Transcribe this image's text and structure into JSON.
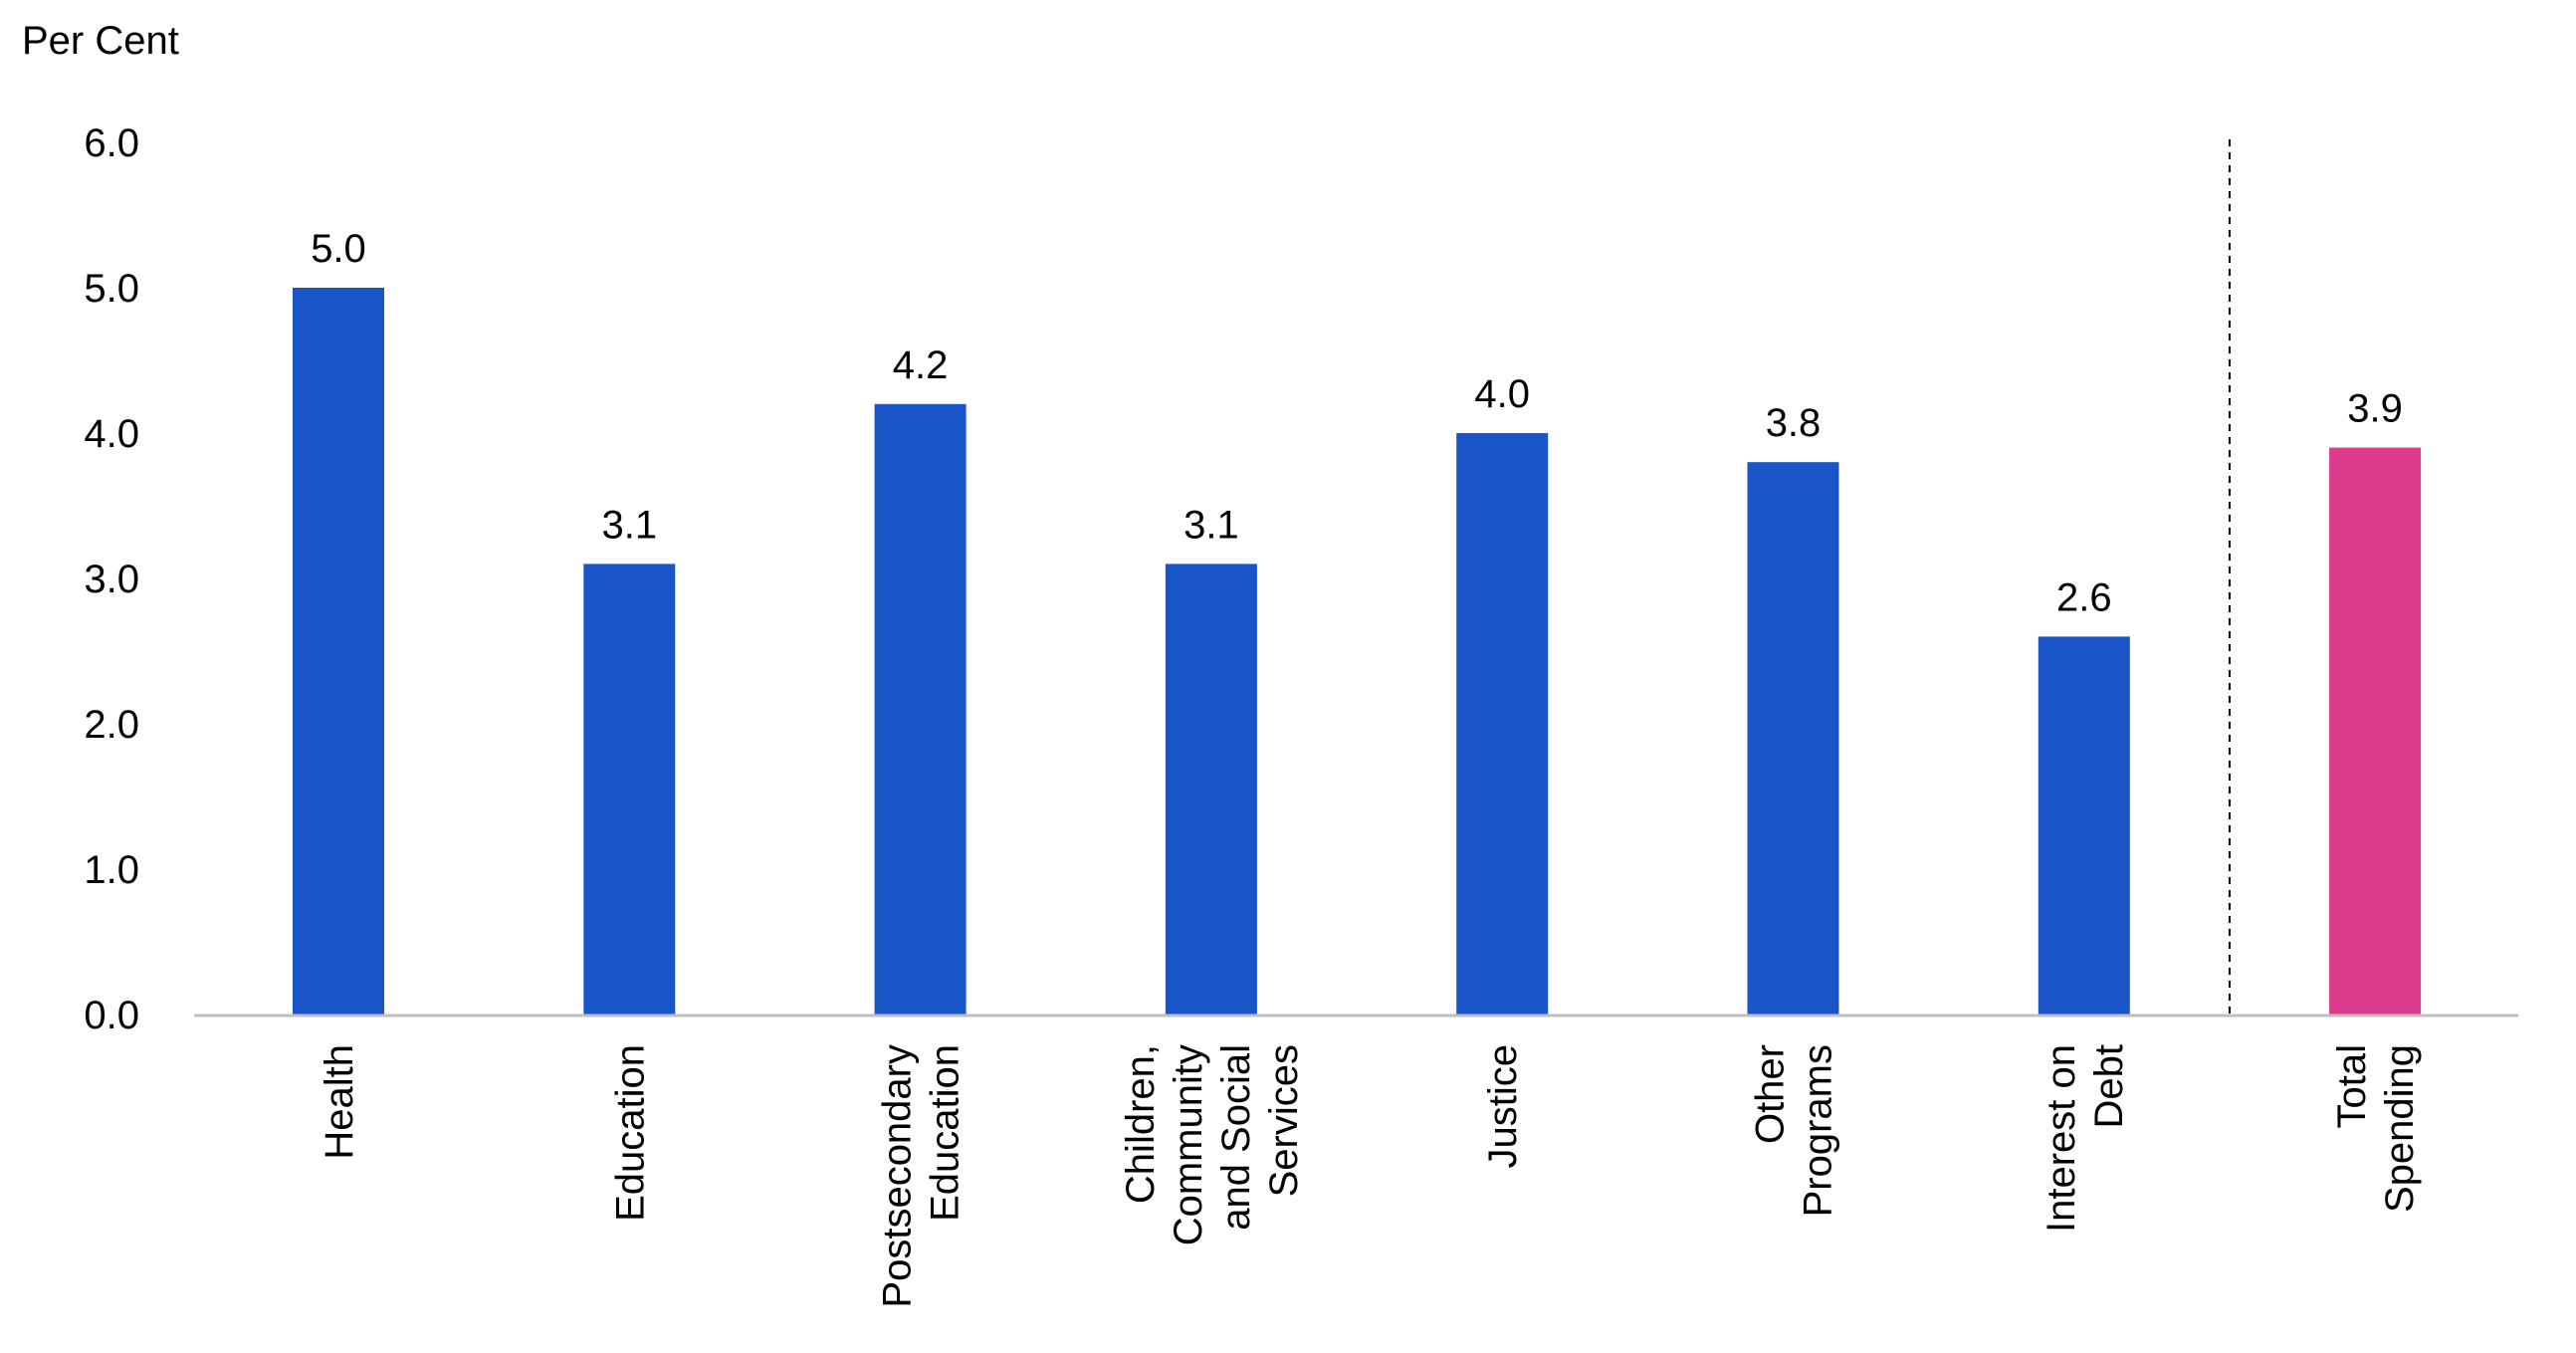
{
  "chart_data": {
    "type": "bar",
    "ylabel": "Per Cent",
    "ylim": [
      0,
      6
    ],
    "yticks": [
      "0.0",
      "1.0",
      "2.0",
      "3.0",
      "4.0",
      "5.0",
      "6.0"
    ],
    "grid": false,
    "categories": [
      [
        "Health"
      ],
      [
        "Education"
      ],
      [
        "Postsecondary",
        "Education"
      ],
      [
        "Children,",
        "Community",
        "and Social",
        "Services"
      ],
      [
        "Justice"
      ],
      [
        "Other",
        "Programs"
      ],
      [
        "Interest on",
        "Debt"
      ],
      [
        "Total",
        "Spending"
      ]
    ],
    "values": [
      5.0,
      3.1,
      4.2,
      3.1,
      4.0,
      3.8,
      2.6,
      3.9
    ],
    "value_labels": [
      "5.0",
      "3.1",
      "4.2",
      "3.1",
      "4.0",
      "3.8",
      "2.6",
      "3.9"
    ],
    "colors": [
      "#1955c9",
      "#1955c9",
      "#1955c9",
      "#1955c9",
      "#1955c9",
      "#1955c9",
      "#1955c9",
      "#dc3a8a"
    ],
    "separator": "dashed line before Total Spending",
    "axis_color": "#bfbfbf"
  }
}
